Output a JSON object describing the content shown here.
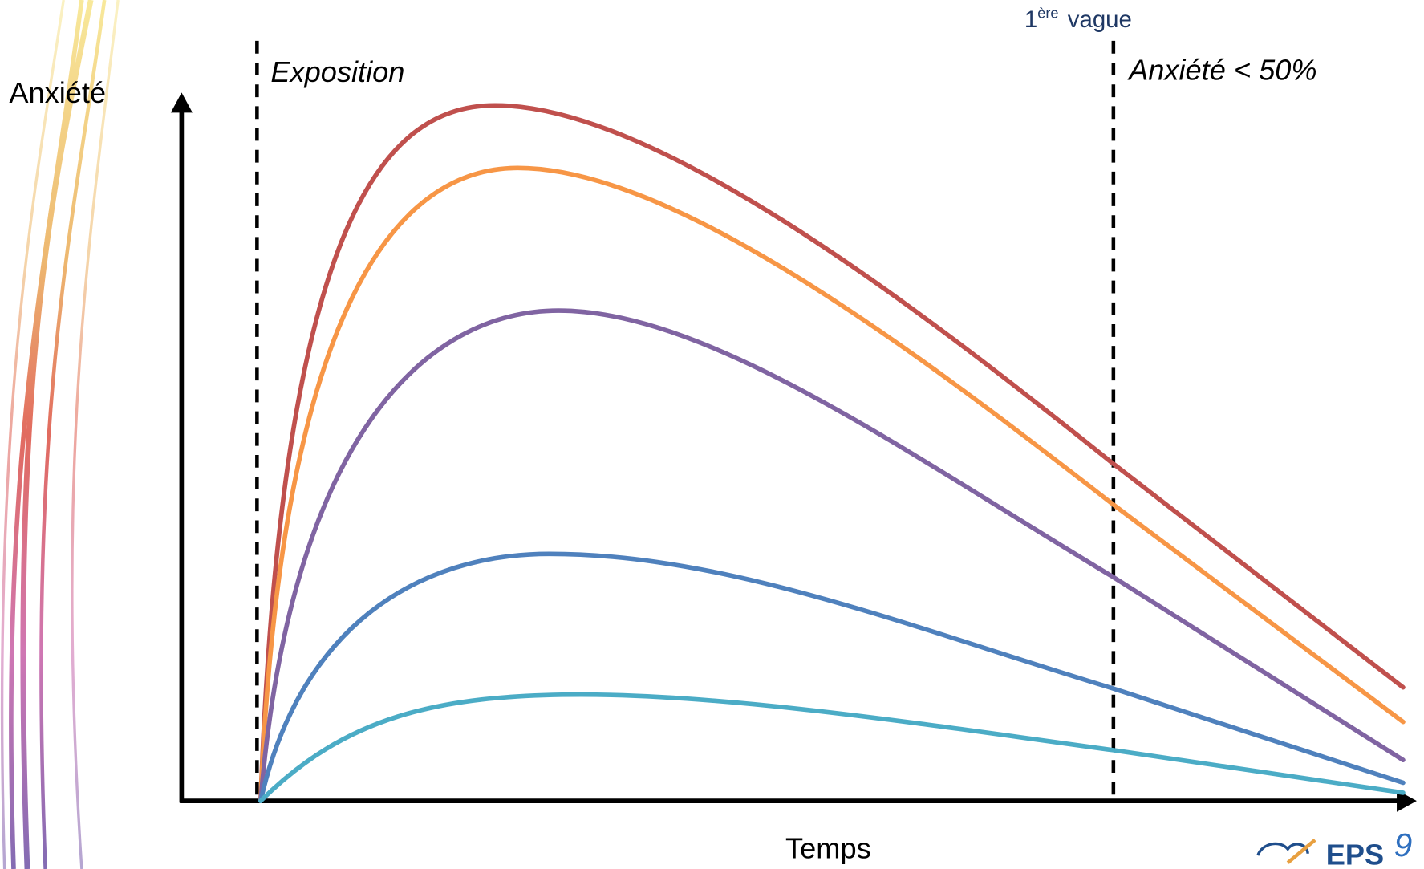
{
  "axes": {
    "y_label": "Anxiété",
    "x_label": "Temps"
  },
  "markers": [
    {
      "label": "Exposition"
    },
    {
      "caption": {
        "number": "1",
        "superscript": "ère",
        "text": "vague"
      },
      "label": "Anxiété < 50%"
    }
  ],
  "logo": {
    "text": "EPS",
    "number": "9"
  }
}
